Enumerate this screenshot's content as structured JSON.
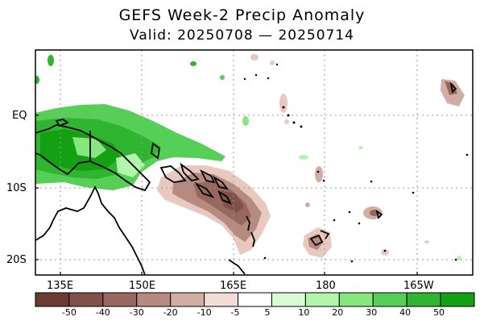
{
  "title": "GEFS Week-2 Precip Anomaly",
  "subtitle": "Valid: 20250708 — 20250714",
  "axes": {
    "x_ticks": [
      "135E",
      "150E",
      "165E",
      "180",
      "165W"
    ],
    "y_ticks": [
      "EQ",
      "10S",
      "20S"
    ]
  },
  "colorbar": {
    "labels": [
      "-50",
      "-40",
      "-30",
      "-20",
      "-10",
      "-5",
      "5",
      "10",
      "20",
      "30",
      "40",
      "50"
    ],
    "colors": [
      "#6b3a33",
      "#7f5148",
      "#98675f",
      "#b58a80",
      "#d2ada3",
      "#f0ddd6",
      "#ffffff",
      "#d9fcd4",
      "#b3f5ab",
      "#86e680",
      "#55cf55",
      "#2fb52f",
      "#13a013"
    ]
  },
  "colors": {
    "brown_dark": "#7f5148",
    "brown_mid": "#b58a80",
    "brown_light": "#e8c8bf",
    "green_dark": "#13a013",
    "green_mid": "#55cf55",
    "green_light": "#b3f5ab"
  }
}
